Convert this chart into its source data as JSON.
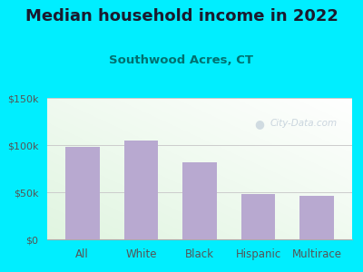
{
  "title": "Median household income in 2022",
  "subtitle": "Southwood Acres, CT",
  "categories": [
    "All",
    "White",
    "Black",
    "Hispanic",
    "Multirace"
  ],
  "values": [
    98000,
    105000,
    82000,
    48000,
    46000
  ],
  "bar_color": "#b8a9d0",
  "background_outer": "#00eeff",
  "title_color": "#1a1a2e",
  "subtitle_color": "#007070",
  "tick_color": "#555555",
  "grid_color": "#cccccc",
  "ylim": [
    0,
    150000
  ],
  "yticks": [
    0,
    50000,
    100000,
    150000
  ],
  "ytick_labels": [
    "$0",
    "$50k",
    "$100k",
    "$150k"
  ],
  "watermark": "City-Data.com",
  "title_fontsize": 13,
  "subtitle_fontsize": 9.5,
  "tick_fontsize": 8,
  "xlabel_fontsize": 8.5
}
